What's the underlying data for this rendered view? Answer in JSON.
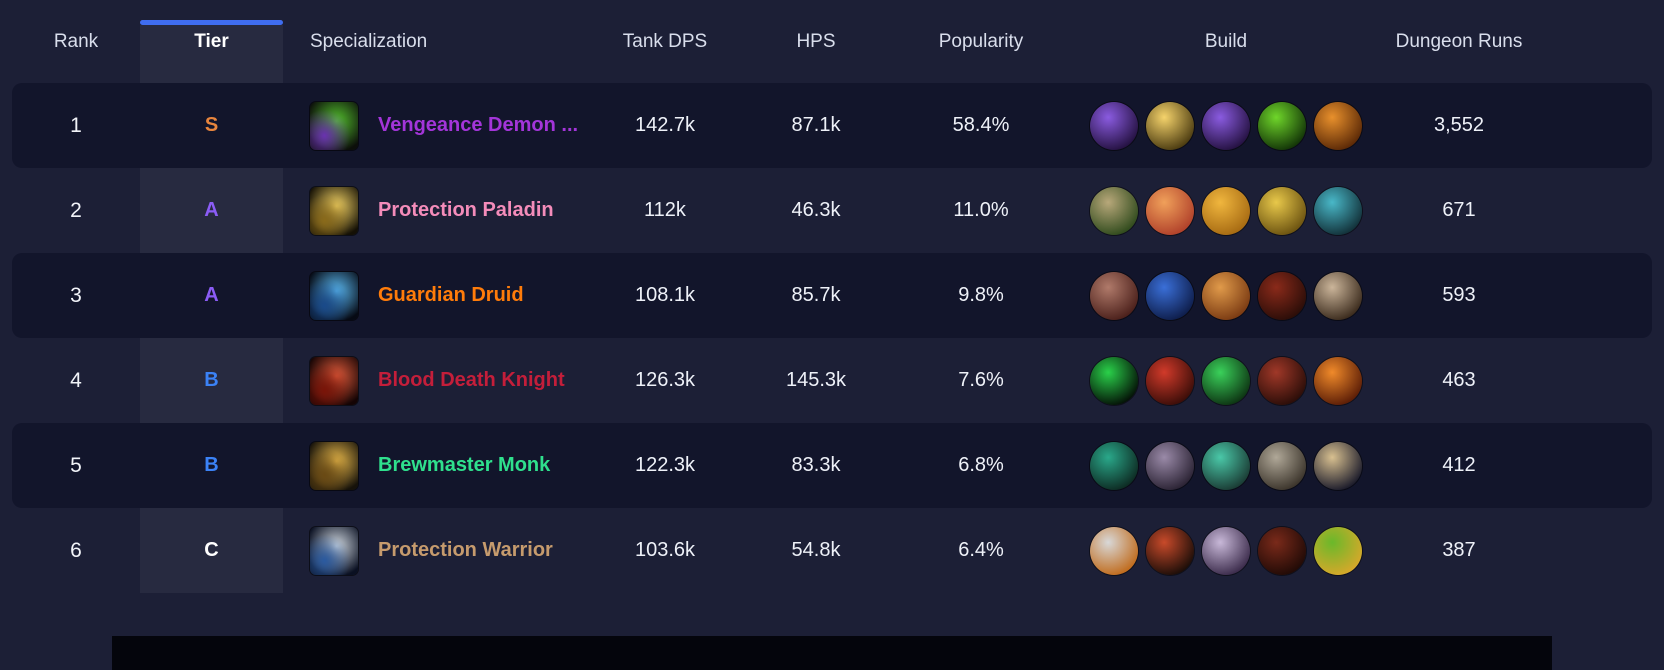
{
  "accent_color": "#3f6df0",
  "table": {
    "columns": {
      "rank": "Rank",
      "tier": "Tier",
      "spec": "Specialization",
      "dps": "Tank DPS",
      "hps": "HPS",
      "popularity": "Popularity",
      "build": "Build",
      "runs": "Dungeon Runs"
    },
    "sorted_column": "Tier",
    "rows": [
      {
        "rank": "1",
        "tier": "S",
        "tier_color": "#e8853d",
        "spec": "Vengeance Demon ...",
        "spec_color": "#a335d9",
        "spec_icon": {
          "name": "vengeance-demon-hunter-icon",
          "fg": "#54c12e",
          "accent": "#6a32b0",
          "bg": "#0c0f0a"
        },
        "dps": "142.7k",
        "hps": "87.1k",
        "popularity": "58.4%",
        "runs": "3,552",
        "build": [
          {
            "name": "purple-orb-talent-icon",
            "inner": "#8a5be0",
            "outer": "#241140"
          },
          {
            "name": "gold-starburst-talent-icon",
            "inner": "#f5d36b",
            "outer": "#4a3a10"
          },
          {
            "name": "purple-orb-talent-icon",
            "inner": "#8a5be0",
            "outer": "#241140"
          },
          {
            "name": "green-demon-talent-icon",
            "inner": "#6fd62a",
            "outer": "#123307"
          },
          {
            "name": "orange-swirl-talent-icon",
            "inner": "#e8902c",
            "outer": "#5a2806"
          }
        ]
      },
      {
        "rank": "2",
        "tier": "A",
        "tier_color": "#8b5cf6",
        "spec": "Protection Paladin",
        "spec_color": "#f48cba",
        "spec_icon": {
          "name": "protection-paladin-icon",
          "fg": "#f2d264",
          "accent": "#8a6a1a",
          "bg": "#141005"
        },
        "dps": "112k",
        "hps": "46.3k",
        "popularity": "11.0%",
        "runs": "671",
        "build": [
          {
            "name": "green-lion-talent-icon",
            "inner": "#b8a87a",
            "outer": "#2f4a1c"
          },
          {
            "name": "orange-beam-talent-icon",
            "inner": "#f0a05a",
            "outer": "#b0402a"
          },
          {
            "name": "golden-figure-talent-icon",
            "inner": "#f0b63e",
            "outer": "#a66a12"
          },
          {
            "name": "gold-shield-talent-icon",
            "inner": "#e8c84a",
            "outer": "#6b5210"
          },
          {
            "name": "teal-turtle-talent-icon",
            "inner": "#49b8c8",
            "outer": "#123038"
          }
        ]
      },
      {
        "rank": "3",
        "tier": "A",
        "tier_color": "#8b5cf6",
        "spec": "Guardian Druid",
        "spec_color": "#ff7c0a",
        "spec_icon": {
          "name": "guardian-druid-icon",
          "fg": "#5ab8f0",
          "accent": "#1a4a8a",
          "bg": "#060a14"
        },
        "dps": "108.1k",
        "hps": "85.7k",
        "popularity": "9.8%",
        "runs": "593",
        "build": [
          {
            "name": "maroon-bear-talent-icon",
            "inner": "#b07a6a",
            "outer": "#4a1f1a"
          },
          {
            "name": "blue-figure-talent-icon",
            "inner": "#3a6fd8",
            "outer": "#0e1d4a"
          },
          {
            "name": "orange-armor-talent-icon",
            "inner": "#e09a4a",
            "outer": "#7a3a12"
          },
          {
            "name": "red-wolf-talent-icon",
            "inner": "#8a2a1a",
            "outer": "#2a0d08"
          },
          {
            "name": "tan-claws-talent-icon",
            "inner": "#cbb59a",
            "outer": "#3a2a1c"
          }
        ]
      },
      {
        "rank": "4",
        "tier": "B",
        "tier_color": "#3b82f6",
        "spec": "Blood Death Knight",
        "spec_color": "#c41e3a",
        "spec_icon": {
          "name": "blood-death-knight-icon",
          "fg": "#e05a3a",
          "accent": "#7a1408",
          "bg": "#140404"
        },
        "dps": "126.3k",
        "hps": "145.3k",
        "popularity": "7.6%",
        "runs": "463",
        "build": [
          {
            "name": "green-ring-talent-icon",
            "inner": "#2ad14a",
            "outer": "#041006"
          },
          {
            "name": "red-skull-talent-icon",
            "inner": "#d13a2a",
            "outer": "#3a0d08"
          },
          {
            "name": "green-skull-talent-icon",
            "inner": "#3ad15a",
            "outer": "#0d3312"
          },
          {
            "name": "red-claws-talent-icon",
            "inner": "#a03828",
            "outer": "#2a0d08"
          },
          {
            "name": "flame-heart-talent-icon",
            "inner": "#f08a2a",
            "outer": "#5a1c06"
          }
        ]
      },
      {
        "rank": "5",
        "tier": "B",
        "tier_color": "#3b82f6",
        "spec": "Brewmaster Monk",
        "spec_color": "#2fe08d",
        "spec_icon": {
          "name": "brewmaster-monk-icon",
          "fg": "#e8b84a",
          "accent": "#6a4a14",
          "bg": "#16120a"
        },
        "dps": "122.3k",
        "hps": "83.3k",
        "popularity": "6.8%",
        "runs": "412",
        "build": [
          {
            "name": "teal-swirl-talent-icon",
            "inner": "#2aa88a",
            "outer": "#0d2a22"
          },
          {
            "name": "gray-figure-talent-icon",
            "inner": "#9a8aa8",
            "outer": "#2a2233"
          },
          {
            "name": "teal-mist-talent-icon",
            "inner": "#4ac8a8",
            "outer": "#1a3a33"
          },
          {
            "name": "keg-talent-icon",
            "inner": "#b0a898",
            "outer": "#3a332a"
          },
          {
            "name": "monk-statue-talent-icon",
            "inner": "#d8c090",
            "outer": "#1a1a2a"
          }
        ]
      },
      {
        "rank": "6",
        "tier": "C",
        "tier_color": "#ffffff",
        "spec": "Protection Warrior",
        "spec_color": "#c69b6d",
        "spec_icon": {
          "name": "protection-warrior-icon",
          "fg": "#d0d8e0",
          "accent": "#2a5aa0",
          "bg": "#0a1022"
        },
        "dps": "103.6k",
        "hps": "54.8k",
        "popularity": "6.4%",
        "runs": "387",
        "build": [
          {
            "name": "silver-shield-talent-icon",
            "inner": "#d8d8d8",
            "outer": "#c06a1a"
          },
          {
            "name": "red-charge-talent-icon",
            "inner": "#c84a2a",
            "outer": "#1a0d08"
          },
          {
            "name": "banshee-scream-talent-icon",
            "inner": "#c8b8d8",
            "outer": "#3a2a4a"
          },
          {
            "name": "red-body-talent-icon",
            "inner": "#7a2a1a",
            "outer": "#200a06"
          },
          {
            "name": "green-face-talent-icon",
            "inner": "#6ab82a",
            "outer": "#d8a82a"
          }
        ]
      }
    ]
  }
}
